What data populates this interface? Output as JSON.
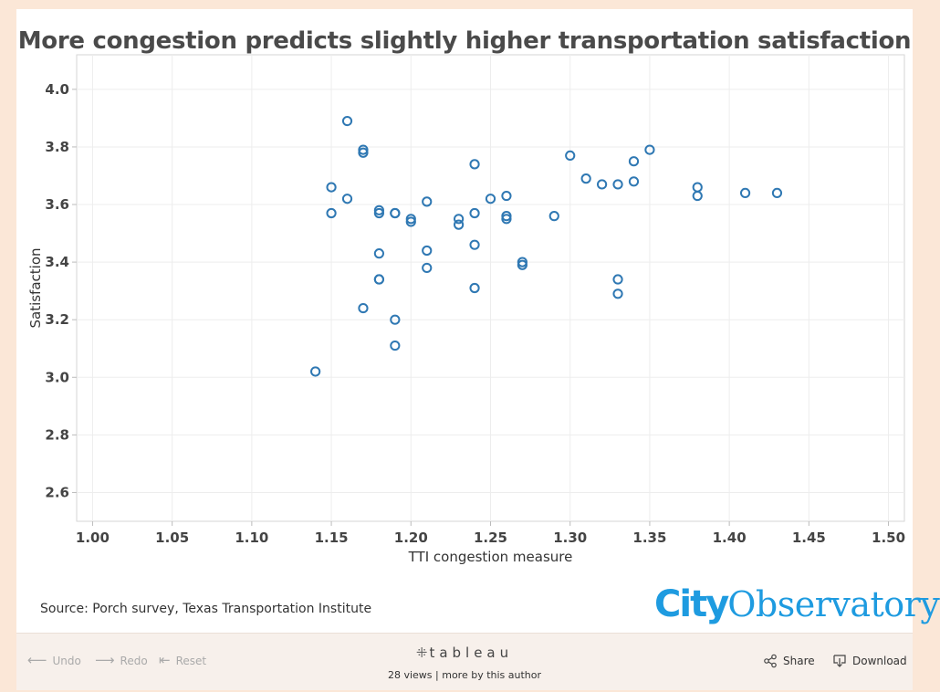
{
  "chart_data": {
    "type": "scatter",
    "title": "More congestion predicts slightly higher transportation satisfaction",
    "xlabel": "TTI congestion measure",
    "ylabel": "Satisfaction",
    "xlim": [
      0.99,
      1.51
    ],
    "ylim": [
      2.5,
      4.12
    ],
    "xticks": [
      "1.00",
      "1.05",
      "1.10",
      "1.15",
      "1.20",
      "1.25",
      "1.30",
      "1.35",
      "1.40",
      "1.45",
      "1.50"
    ],
    "yticks": [
      "2.6",
      "2.8",
      "3.0",
      "3.2",
      "3.4",
      "3.6",
      "3.8",
      "4.0"
    ],
    "grid": true,
    "marker_color": "#2f78b3",
    "points": [
      {
        "x": 1.14,
        "y": 3.02
      },
      {
        "x": 1.15,
        "y": 3.66
      },
      {
        "x": 1.15,
        "y": 3.57
      },
      {
        "x": 1.16,
        "y": 3.89
      },
      {
        "x": 1.16,
        "y": 3.62
      },
      {
        "x": 1.17,
        "y": 3.79
      },
      {
        "x": 1.17,
        "y": 3.78
      },
      {
        "x": 1.17,
        "y": 3.24
      },
      {
        "x": 1.18,
        "y": 3.58
      },
      {
        "x": 1.18,
        "y": 3.57
      },
      {
        "x": 1.18,
        "y": 3.43
      },
      {
        "x": 1.18,
        "y": 3.34
      },
      {
        "x": 1.18,
        "y": 3.34
      },
      {
        "x": 1.19,
        "y": 3.57
      },
      {
        "x": 1.19,
        "y": 3.57
      },
      {
        "x": 1.19,
        "y": 3.2
      },
      {
        "x": 1.19,
        "y": 3.11
      },
      {
        "x": 1.2,
        "y": 3.55
      },
      {
        "x": 1.2,
        "y": 3.54
      },
      {
        "x": 1.21,
        "y": 3.61
      },
      {
        "x": 1.21,
        "y": 3.44
      },
      {
        "x": 1.21,
        "y": 3.38
      },
      {
        "x": 1.23,
        "y": 3.55
      },
      {
        "x": 1.23,
        "y": 3.53
      },
      {
        "x": 1.24,
        "y": 3.74
      },
      {
        "x": 1.24,
        "y": 3.57
      },
      {
        "x": 1.24,
        "y": 3.46
      },
      {
        "x": 1.24,
        "y": 3.31
      },
      {
        "x": 1.25,
        "y": 3.62
      },
      {
        "x": 1.26,
        "y": 3.63
      },
      {
        "x": 1.26,
        "y": 3.56
      },
      {
        "x": 1.26,
        "y": 3.55
      },
      {
        "x": 1.27,
        "y": 3.4
      },
      {
        "x": 1.27,
        "y": 3.39
      },
      {
        "x": 1.29,
        "y": 3.56
      },
      {
        "x": 1.3,
        "y": 3.77
      },
      {
        "x": 1.31,
        "y": 3.69
      },
      {
        "x": 1.32,
        "y": 3.67
      },
      {
        "x": 1.33,
        "y": 3.67
      },
      {
        "x": 1.33,
        "y": 3.34
      },
      {
        "x": 1.33,
        "y": 3.29
      },
      {
        "x": 1.34,
        "y": 3.75
      },
      {
        "x": 1.34,
        "y": 3.68
      },
      {
        "x": 1.35,
        "y": 3.79
      },
      {
        "x": 1.38,
        "y": 3.66
      },
      {
        "x": 1.38,
        "y": 3.63
      },
      {
        "x": 1.41,
        "y": 3.64
      },
      {
        "x": 1.43,
        "y": 3.64
      }
    ]
  },
  "footer": {
    "source": "Source: Porch survey, Texas Transportation Institute",
    "logo_city": "City",
    "logo_observatory": "Observatory",
    "logo_color": "#1e9be0"
  },
  "toolbar": {
    "undo": "Undo",
    "redo": "Redo",
    "reset": "Reset",
    "brand": "tableau",
    "views": "28 views",
    "separator": "|",
    "more": "more by this author",
    "share": "Share",
    "download": "Download",
    "icons": {
      "undo": "arrow-left-icon",
      "redo": "arrow-right-icon",
      "reset": "reset-icon",
      "brand": "tableau-logo-icon",
      "share": "share-icon",
      "download": "download-icon"
    }
  }
}
